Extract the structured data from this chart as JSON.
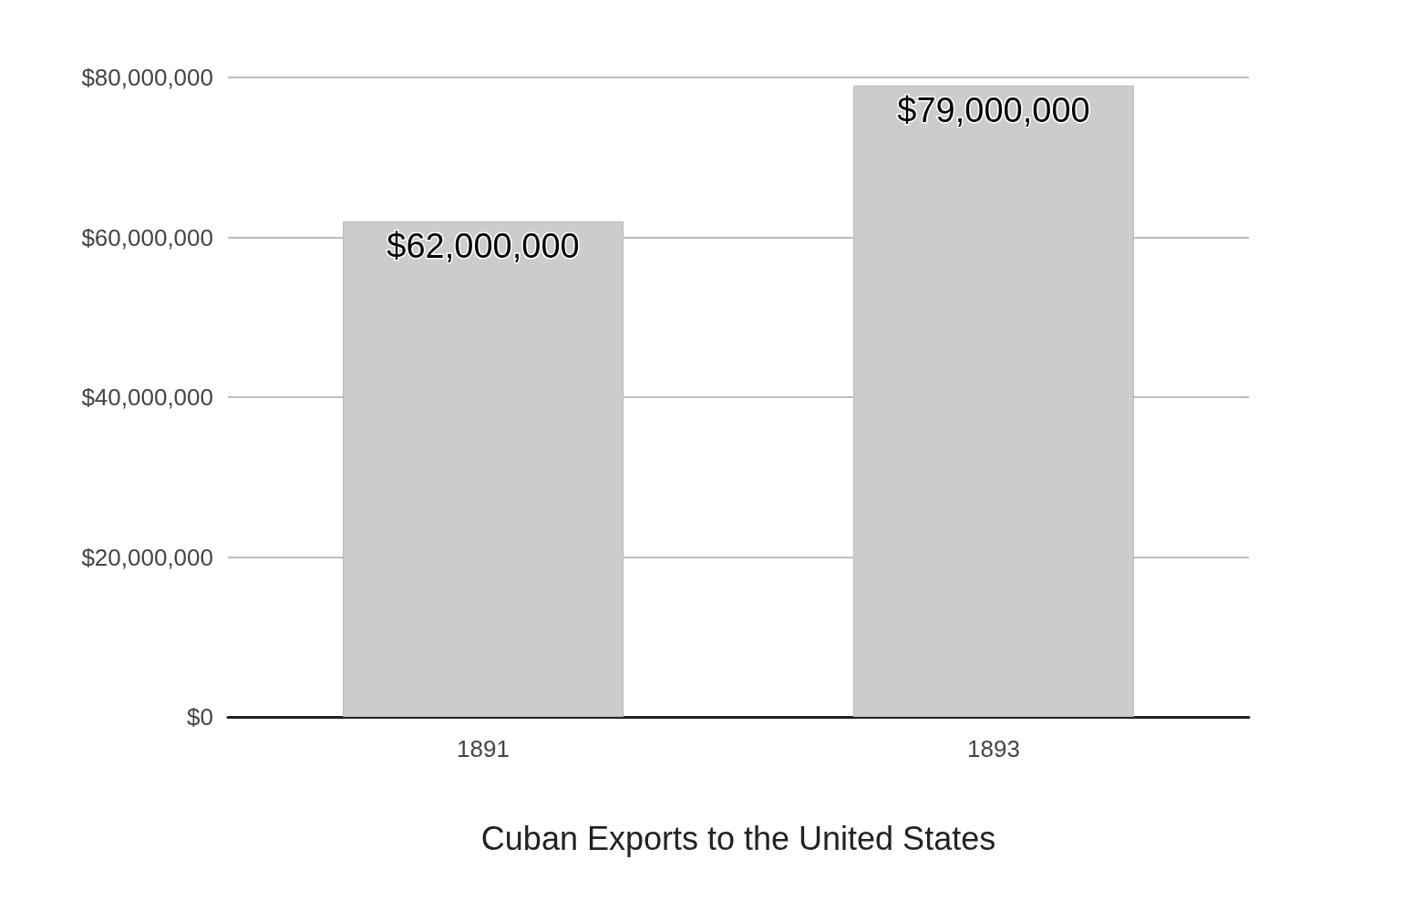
{
  "chart_data": {
    "type": "bar",
    "xlabel": "Cuban Exports to the United States",
    "categories": [
      "1891",
      "1893"
    ],
    "values": [
      62000000,
      79000000
    ],
    "value_labels": [
      "$62,000,000",
      "$79,000,000"
    ],
    "color": "#cccccc",
    "ylim": [
      0,
      80000000
    ],
    "yticks": [
      {
        "value": 0,
        "label": "$0"
      },
      {
        "value": 20000000,
        "label": "$20,000,000"
      },
      {
        "value": 40000000,
        "label": "$40,000,000"
      },
      {
        "value": 60000000,
        "label": "$60,000,000"
      },
      {
        "value": 80000000,
        "label": "$80,000,000"
      }
    ],
    "grid": "y"
  }
}
